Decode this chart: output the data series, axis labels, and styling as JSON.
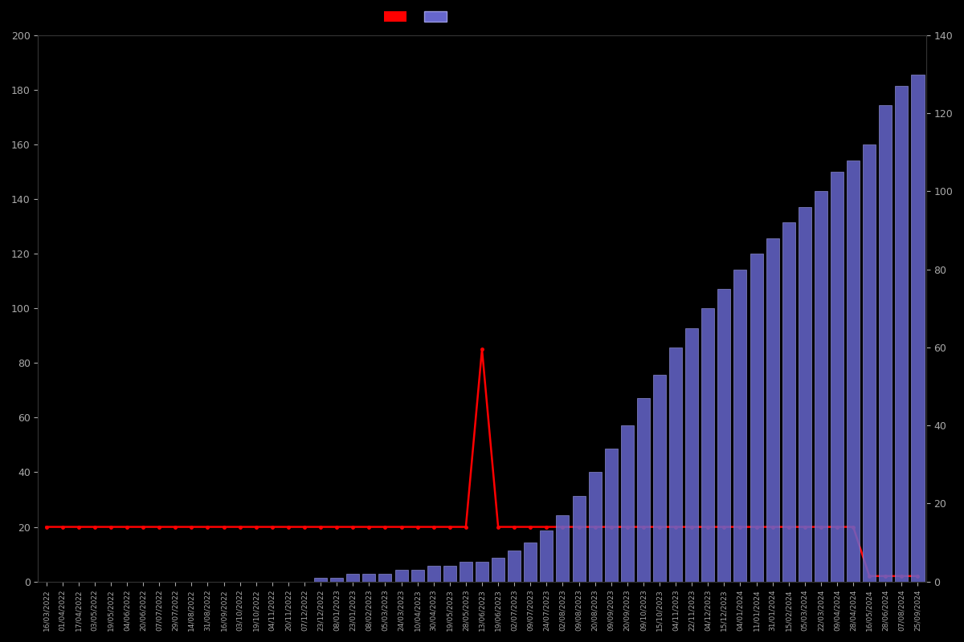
{
  "background_color": "#000000",
  "text_color": "#aaaaaa",
  "bar_color": "#6666cc",
  "bar_edge_color": "#9999dd",
  "line_color": "#ff0000",
  "line_marker": "o",
  "line_marker_size": 2.5,
  "left_ylim": [
    0,
    200
  ],
  "right_ylim": [
    0,
    140
  ],
  "left_yticks": [
    0,
    20,
    40,
    60,
    80,
    100,
    120,
    140,
    160,
    180,
    200
  ],
  "right_yticks": [
    0,
    20,
    40,
    60,
    80,
    100,
    120,
    140
  ],
  "dates": [
    "16/03/2022",
    "01/04/2022",
    "17/04/2022",
    "03/05/2022",
    "19/05/2022",
    "04/06/2022",
    "20/06/2022",
    "07/07/2022",
    "29/07/2022",
    "14/08/2022",
    "31/08/2022",
    "16/09/2022",
    "03/10/2022",
    "19/10/2022",
    "04/11/2022",
    "20/11/2022",
    "07/12/2022",
    "23/12/2022",
    "08/01/2023",
    "23/01/2023",
    "08/02/2023",
    "05/03/2023",
    "24/03/2023",
    "10/04/2023",
    "30/04/2023",
    "19/05/2023",
    "28/05/2023",
    "13/06/2023",
    "19/06/2023",
    "02/07/2023",
    "09/07/2023",
    "24/07/2023",
    "02/08/2023",
    "09/08/2023",
    "20/08/2023",
    "09/09/2023",
    "20/09/2023",
    "09/10/2023",
    "15/10/2023",
    "04/11/2023",
    "22/11/2023",
    "04/12/2023",
    "15/12/2023",
    "04/01/2024",
    "11/01/2024",
    "31/01/2024",
    "15/02/2024",
    "05/03/2024",
    "22/03/2024",
    "09/04/2024",
    "28/04/2024",
    "16/05/2024",
    "28/06/2024",
    "07/08/2024",
    "25/09/2024"
  ],
  "bar_values_right_axis": [
    0,
    0,
    0,
    0,
    0,
    0,
    0,
    0,
    0,
    0,
    0,
    0,
    0,
    0,
    0,
    0,
    0,
    1,
    1,
    2,
    2,
    2,
    3,
    3,
    4,
    4,
    5,
    5,
    6,
    8,
    10,
    13,
    17,
    22,
    28,
    34,
    40,
    47,
    53,
    60,
    65,
    70,
    75,
    80,
    84,
    88,
    92,
    96,
    100,
    105,
    108,
    112,
    122,
    127,
    130
  ],
  "line_values": [
    20,
    20,
    20,
    20,
    20,
    20,
    20,
    20,
    20,
    20,
    20,
    20,
    20,
    20,
    20,
    20,
    20,
    20,
    20,
    20,
    20,
    20,
    20,
    20,
    20,
    20,
    20,
    85,
    20,
    20,
    20,
    20,
    20,
    20,
    20,
    20,
    20,
    20,
    20,
    20,
    20,
    20,
    20,
    20,
    20,
    20,
    20,
    20,
    20,
    20,
    20,
    2,
    2,
    2,
    2
  ]
}
